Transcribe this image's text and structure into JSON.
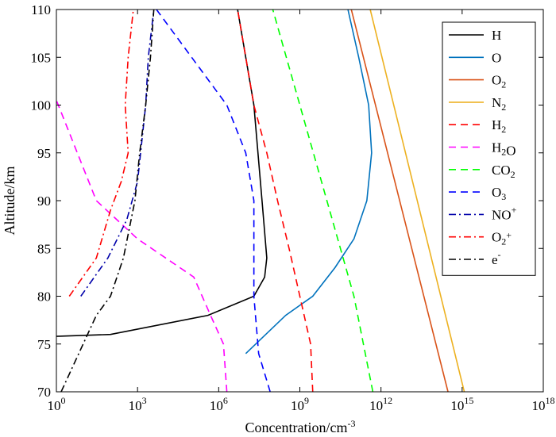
{
  "chart_data": {
    "type": "line",
    "xlabel": "Concentration/cm",
    "xlabel_sup": "-3",
    "ylabel": "Altitude/km",
    "xscale": "log",
    "xlim": [
      1,
      1e+18
    ],
    "ylim": [
      70,
      110
    ],
    "x_ticks": [
      {
        "value": 1,
        "base": "10",
        "exp": "0"
      },
      {
        "value": 1000.0,
        "base": "10",
        "exp": "3"
      },
      {
        "value": 1000000.0,
        "base": "10",
        "exp": "6"
      },
      {
        "value": 1000000000.0,
        "base": "10",
        "exp": "9"
      },
      {
        "value": 1000000000000.0,
        "base": "10",
        "exp": "12"
      },
      {
        "value": 1000000000000000.0,
        "base": "10",
        "exp": "15"
      },
      {
        "value": 1e+18,
        "base": "10",
        "exp": "18"
      }
    ],
    "y_ticks": [
      "70",
      "75",
      "80",
      "85",
      "90",
      "95",
      "100",
      "105",
      "110"
    ],
    "grid": false,
    "legend_position": "top-right",
    "series": [
      {
        "name": "H",
        "label_parts": [
          [
            "H",
            ""
          ]
        ],
        "color": "#000000",
        "dash": "solid",
        "points": [
          [
            1,
            75.8
          ],
          [
            100,
            76
          ],
          [
            400000.0,
            78
          ],
          [
            20000000.0,
            80
          ],
          [
            50000000.0,
            82
          ],
          [
            60000000.0,
            84
          ],
          [
            40000000.0,
            90
          ],
          [
            20000000.0,
            100
          ],
          [
            5000000.0,
            110
          ]
        ]
      },
      {
        "name": "O",
        "label_parts": [
          [
            "O",
            ""
          ]
        ],
        "color": "#0072BD",
        "dash": "solid",
        "points": [
          [
            10000000.0,
            74
          ],
          [
            300000000.0,
            78
          ],
          [
            3000000000.0,
            80
          ],
          [
            20000000000.0,
            83
          ],
          [
            100000000000.0,
            86
          ],
          [
            300000000000.0,
            90
          ],
          [
            450000000000.0,
            95
          ],
          [
            350000000000.0,
            100
          ],
          [
            150000000000.0,
            105
          ],
          [
            60000000000.0,
            110
          ]
        ]
      },
      {
        "name": "O2",
        "label_parts": [
          [
            "O",
            ""
          ],
          [
            "2",
            "sub"
          ]
        ],
        "color": "#D95319",
        "dash": "solid",
        "points": [
          [
            300000000000000.0,
            70
          ],
          [
            80000000000.0,
            110
          ]
        ]
      },
      {
        "name": "N2",
        "label_parts": [
          [
            "N",
            ""
          ],
          [
            "2",
            "sub"
          ]
        ],
        "color": "#EDB120",
        "dash": "solid",
        "points": [
          [
            1200000000000000.0,
            70
          ],
          [
            400000000000.0,
            110
          ]
        ]
      },
      {
        "name": "H2",
        "label_parts": [
          [
            "H",
            ""
          ],
          [
            "2",
            "sub"
          ]
        ],
        "color": "#FF0000",
        "dash": "dashed",
        "points": [
          [
            3000000000.0,
            70
          ],
          [
            2500000000.0,
            75
          ],
          [
            1000000000.0,
            80
          ],
          [
            400000000.0,
            85
          ],
          [
            150000000.0,
            90
          ],
          [
            60000000.0,
            95
          ],
          [
            20000000.0,
            100
          ],
          [
            10000000.0,
            105
          ],
          [
            5000000.0,
            110
          ]
        ]
      },
      {
        "name": "H2O",
        "label_parts": [
          [
            "H",
            ""
          ],
          [
            "2",
            "sub"
          ],
          [
            "O",
            ""
          ]
        ],
        "color": "#FF00FF",
        "dash": "dashed",
        "points": [
          [
            2000000.0,
            70
          ],
          [
            1500000.0,
            75
          ],
          [
            500000.0,
            78
          ],
          [
            120000.0,
            82
          ],
          [
            1000.0,
            86
          ],
          [
            30,
            90
          ],
          [
            1,
            100.5
          ]
        ]
      },
      {
        "name": "CO2",
        "label_parts": [
          [
            "CO",
            ""
          ],
          [
            "2",
            "sub"
          ]
        ],
        "color": "#00FF00",
        "dash": "dashed",
        "points": [
          [
            500000000000.0,
            70
          ],
          [
            100000000000.0,
            80
          ],
          [
            10000000000.0,
            90
          ],
          [
            1000000000.0,
            100
          ],
          [
            100000000.0,
            110
          ]
        ]
      },
      {
        "name": "O3",
        "label_parts": [
          [
            "O",
            ""
          ],
          [
            "3",
            "sub"
          ]
        ],
        "color": "#0000FF",
        "dash": "dashed",
        "points": [
          [
            80000000.0,
            70
          ],
          [
            30000000.0,
            74
          ],
          [
            20000000.0,
            80
          ],
          [
            20000000.0,
            85
          ],
          [
            20000000.0,
            90
          ],
          [
            10000000.0,
            95
          ],
          [
            2000000.0,
            100
          ],
          [
            100000.0,
            105
          ],
          [
            5000.0,
            110
          ]
        ]
      },
      {
        "name": "NO+",
        "label_parts": [
          [
            "NO",
            ""
          ],
          [
            "+",
            "sup"
          ]
        ],
        "color": "#0000AA",
        "dash": "dashdot",
        "points": [
          [
            8,
            80
          ],
          [
            80,
            84
          ],
          [
            400,
            88
          ],
          [
            1000.0,
            92
          ],
          [
            2000.0,
            100
          ],
          [
            2500.0,
            105
          ],
          [
            4000.0,
            110
          ]
        ]
      },
      {
        "name": "O2+",
        "label_parts": [
          [
            "O",
            ""
          ],
          [
            "2",
            "sub"
          ],
          [
            "+",
            "sup"
          ]
        ],
        "color": "#FF0000",
        "dash": "dashdot",
        "points": [
          [
            3,
            80
          ],
          [
            30,
            84
          ],
          [
            100,
            89
          ],
          [
            250,
            92
          ],
          [
            450,
            95
          ],
          [
            350,
            100
          ],
          [
            450,
            105
          ],
          [
            700,
            110
          ]
        ]
      },
      {
        "name": "e-",
        "label_parts": [
          [
            "e",
            ""
          ],
          [
            "-",
            "sup"
          ]
        ],
        "color": "#000000",
        "dash": "dashdot",
        "points": [
          [
            1.5,
            70
          ],
          [
            30,
            78
          ],
          [
            100,
            80
          ],
          [
            300,
            84
          ],
          [
            800,
            90
          ],
          [
            1200.0,
            95
          ],
          [
            2000.0,
            100
          ],
          [
            3000.0,
            105
          ],
          [
            4000.0,
            110
          ]
        ]
      }
    ]
  }
}
